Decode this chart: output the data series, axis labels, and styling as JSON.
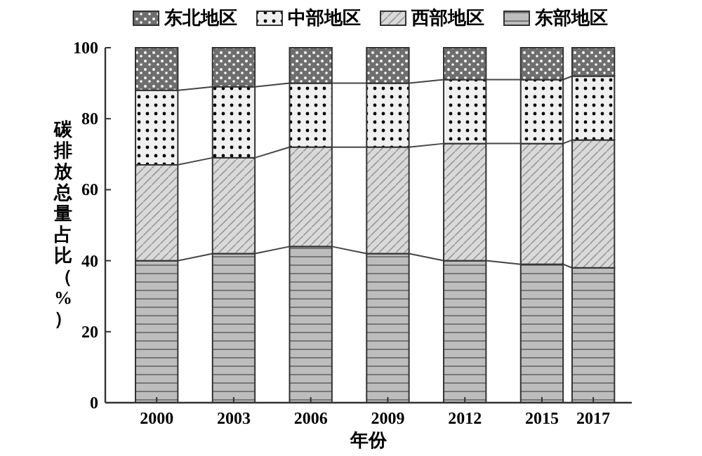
{
  "chart_data": {
    "type": "bar",
    "stacked": true,
    "xlabel": "年份",
    "ylabel": "碳排放总量占比（%）",
    "x": [
      2000,
      2003,
      2006,
      2009,
      2012,
      2015,
      2017
    ],
    "xlim": [
      1998,
      2018.5
    ],
    "xticks": [
      2000,
      2003,
      2006,
      2009,
      2012,
      2015,
      2017
    ],
    "ylim": [
      0,
      100
    ],
    "yticks": [
      0,
      20,
      40,
      60,
      80,
      100
    ],
    "legend": "top",
    "grid": false,
    "series": [
      {
        "name": "东部地区",
        "color": "#bdbdbd",
        "values": [
          40,
          42,
          44,
          42,
          40,
          39,
          38
        ]
      },
      {
        "name": "西部地区",
        "color": "#d9d9d9",
        "values": [
          27,
          27,
          28,
          30,
          33,
          34,
          36
        ]
      },
      {
        "name": "中部地区",
        "color": "#f0f0f0",
        "values": [
          21,
          20,
          18,
          18,
          18,
          18,
          18
        ]
      },
      {
        "name": "东北地区",
        "color": "#6e6e6e",
        "values": [
          12,
          11,
          10,
          10,
          9,
          9,
          8
        ]
      }
    ]
  }
}
